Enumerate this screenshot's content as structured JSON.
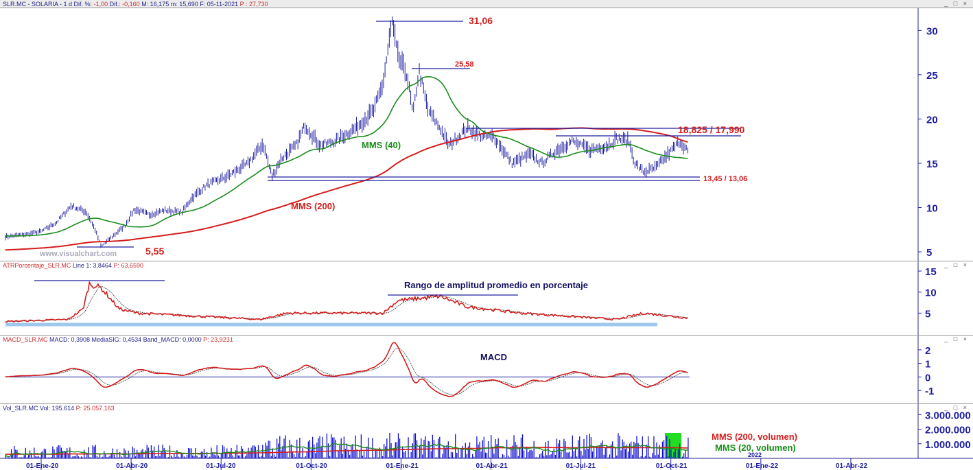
{
  "panels": {
    "price": {
      "title_parts": {
        "symbol": "SLR.MC - SOLARIA - 1 d",
        "dif_pct_label": "Dif. %:",
        "dif_pct": "-1,00",
        "dif_label": "Dif.:",
        "dif": "-0,160",
        "max": "M: 16,175",
        "min": "m: 15,690",
        "date": "F: 05-11-2021",
        "p_label": "P :",
        "p": "27,730"
      }
    },
    "atr": {
      "title": "ATRPorcentaje_SLR.MC",
      "line1": "Line 1: 3,8464",
      "p": "P: 63,6590"
    },
    "macd": {
      "title": "MACD_SLR.MC",
      "values": "MACD: 0,3908  MediaSIG: 0,4534  Band_MACD: 0,0000",
      "p": "P: 23,9231"
    },
    "vol": {
      "title": "Vol_SLR.MC",
      "values": "Vol: 195.614",
      "p": "P: 25.057.163"
    }
  },
  "window_buttons": "_ □ ×",
  "watermark": "www.visualchart.com",
  "colors": {
    "price": "#1e1ea0",
    "mms40": "#1a8c1a",
    "mms200": "#d41c1c",
    "axis": "#1e1ea0",
    "annot": "#d41c1c",
    "atr_band": "#9fc8ee",
    "vol_box": "#22dd22"
  },
  "chart_data": {
    "type": "line",
    "x_units": "months since 01-Ene-20",
    "price": {
      "ylim": [
        4,
        32.5
      ],
      "ticks": [
        5,
        10,
        15,
        20,
        25,
        30
      ],
      "points": [
        [
          -1.2,
          6.7
        ],
        [
          -0.5,
          7.0
        ],
        [
          0,
          7.3
        ],
        [
          0.5,
          8.3
        ],
        [
          1.0,
          10.2
        ],
        [
          1.5,
          9.5
        ],
        [
          1.8,
          7.5
        ],
        [
          2.0,
          5.6
        ],
        [
          2.3,
          6.5
        ],
        [
          2.8,
          8.0
        ],
        [
          3.1,
          9.8
        ],
        [
          3.6,
          9.2
        ],
        [
          4.1,
          9.7
        ],
        [
          4.7,
          9.5
        ],
        [
          5.0,
          11.0
        ],
        [
          5.5,
          12.5
        ],
        [
          6.2,
          13.5
        ],
        [
          6.9,
          15.0
        ],
        [
          7.4,
          17.2
        ],
        [
          7.7,
          13.5
        ],
        [
          8.0,
          15.5
        ],
        [
          8.5,
          17.0
        ],
        [
          8.8,
          19.3
        ],
        [
          9.3,
          17.0
        ],
        [
          9.8,
          17.5
        ],
        [
          10.5,
          19.0
        ],
        [
          11.1,
          21.0
        ],
        [
          11.4,
          24.0
        ],
        [
          11.7,
          31.0
        ],
        [
          11.9,
          27.0
        ],
        [
          12.2,
          25.0
        ],
        [
          12.4,
          20.5
        ],
        [
          12.6,
          25.5
        ],
        [
          12.9,
          21.0
        ],
        [
          13.3,
          19.0
        ],
        [
          13.6,
          17.0
        ],
        [
          14.2,
          19.0
        ],
        [
          14.7,
          18.0
        ],
        [
          15.1,
          18.0
        ],
        [
          15.7,
          15.0
        ],
        [
          16.3,
          16.0
        ],
        [
          16.7,
          15.0
        ],
        [
          17.2,
          16.5
        ],
        [
          17.7,
          17.5
        ],
        [
          18.3,
          16.5
        ],
        [
          18.9,
          17.0
        ],
        [
          19.2,
          17.8
        ],
        [
          19.6,
          17.5
        ],
        [
          19.8,
          15.0
        ],
        [
          20.1,
          14.0
        ],
        [
          20.5,
          14.5
        ],
        [
          20.9,
          16.0
        ],
        [
          21.3,
          17.5
        ],
        [
          21.6,
          16.2
        ]
      ],
      "series_labels": {
        "mms40": "MMS (40)",
        "mms200": "MMS (200)"
      },
      "annotations": {
        "high": "31,06",
        "high2": "25,58",
        "resistance": "18,825 / 17,990",
        "support": "13,45 / 13,06",
        "low": "5,55"
      }
    },
    "atr": {
      "ylim": [
        0,
        15.5
      ],
      "ticks": [
        5,
        10,
        15
      ],
      "label": "Rango de amplitud promedio en porcentaje",
      "points": [
        [
          -1.2,
          3
        ],
        [
          0.9,
          3.5
        ],
        [
          1.4,
          6
        ],
        [
          1.6,
          12
        ],
        [
          2.0,
          11
        ],
        [
          2.6,
          6
        ],
        [
          3.2,
          5
        ],
        [
          7.3,
          3.5
        ],
        [
          8.2,
          5
        ],
        [
          11.4,
          5
        ],
        [
          11.9,
          8
        ],
        [
          13.3,
          9
        ],
        [
          14.2,
          6.5
        ],
        [
          16.0,
          5
        ],
        [
          19.2,
          3.5
        ],
        [
          20.1,
          5
        ],
        [
          21.6,
          3.8
        ]
      ]
    },
    "macd": {
      "ylim": [
        -1.9,
        2.5
      ],
      "ticks": [
        -1,
        0,
        1,
        2
      ],
      "label": "MACD"
    },
    "volume": {
      "ylim": [
        0,
        3200000
      ],
      "ticks": [
        "1.000.000",
        "2.000.000",
        "3.000.000"
      ],
      "tick_values": [
        1000000,
        2000000,
        3000000
      ],
      "labels": {
        "mms200": "MMS (200, volumen)",
        "mms20": "MMS (20, volumen)"
      }
    },
    "x_ticks": [
      {
        "m": 0,
        "label": "01-Ene-20"
      },
      {
        "m": 3,
        "label": "01-Abr-20"
      },
      {
        "m": 6,
        "label": "01-Jul-20"
      },
      {
        "m": 9,
        "label": "01-Oct-20"
      },
      {
        "m": 12,
        "label": "01-Ene-21"
      },
      {
        "m": 15,
        "label": "01-Abr-21"
      },
      {
        "m": 18,
        "label": "01-Jul-21"
      },
      {
        "m": 21,
        "label": "01-Oct-21"
      },
      {
        "m": 24,
        "label": "01-Ene-22"
      },
      {
        "m": 27,
        "label": "01-Abr-22"
      }
    ],
    "year_marker": "2022"
  }
}
